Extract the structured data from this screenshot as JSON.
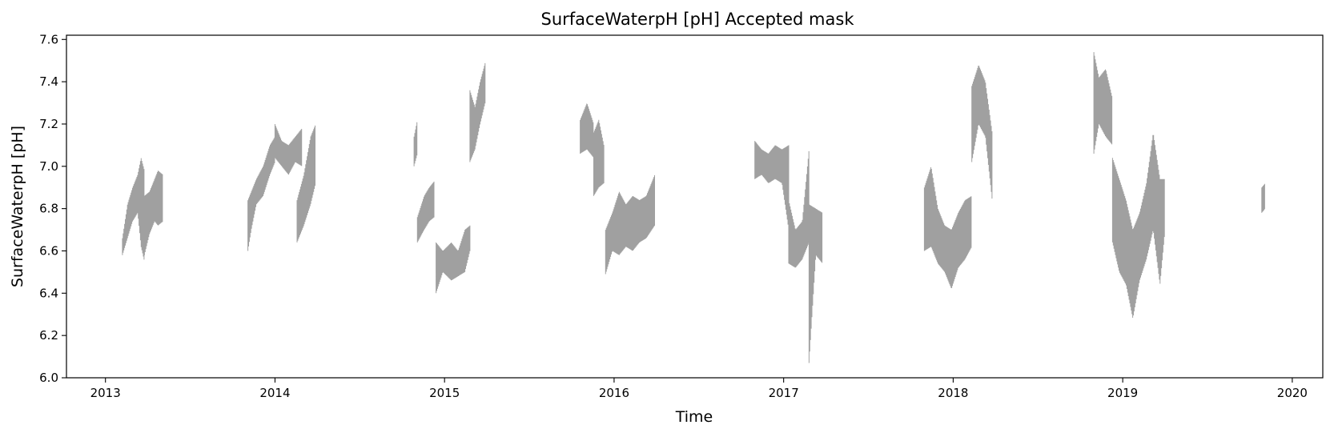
{
  "chart_data": {
    "type": "line",
    "title": "SurfaceWaterpH [pH] Accepted mask",
    "xlabel": "Time",
    "ylabel": "SurfaceWaterpH [pH]",
    "xlim": [
      2012.77,
      2020.18
    ],
    "ylim": [
      6.0,
      7.62
    ],
    "x_ticks": [
      2013,
      2014,
      2015,
      2016,
      2017,
      2018,
      2019,
      2020
    ],
    "x_tick_labels": [
      "2013",
      "2014",
      "2015",
      "2016",
      "2017",
      "2018",
      "2019",
      "2020"
    ],
    "y_ticks": [
      6.0,
      6.2,
      6.4,
      6.6,
      6.8,
      7.0,
      7.2,
      7.4,
      7.6
    ],
    "y_tick_labels": [
      "6.0",
      "6.2",
      "6.4",
      "6.6",
      "6.8",
      "7.0",
      "7.2",
      "7.4",
      "7.6"
    ],
    "grid": false,
    "series_color": "#a0a0a0",
    "series": [
      {
        "segments": [
          {
            "x": [
              2013.1,
              2013.13,
              2013.16,
              2013.19,
              2013.21,
              2013.23
            ],
            "lo": [
              6.58,
              6.66,
              6.74,
              6.78,
              6.62,
              6.55
            ],
            "hi": [
              6.66,
              6.82,
              6.9,
              6.96,
              7.04,
              6.98
            ]
          },
          {
            "x": [
              2013.23,
              2013.26,
              2013.29,
              2013.31,
              2013.34
            ],
            "lo": [
              6.58,
              6.68,
              6.74,
              6.72,
              6.74
            ],
            "hi": [
              6.86,
              6.88,
              6.94,
              6.98,
              6.96
            ]
          },
          {
            "x": [
              2013.84,
              2013.86,
              2013.89,
              2013.93,
              2013.97,
              2014.0
            ],
            "lo": [
              6.6,
              6.7,
              6.82,
              6.86,
              6.96,
              7.02
            ],
            "hi": [
              6.84,
              6.88,
              6.94,
              7.0,
              7.1,
              7.14
            ]
          },
          {
            "x": [
              2014.0,
              2014.04,
              2014.08,
              2014.12,
              2014.16
            ],
            "lo": [
              7.04,
              7.0,
              6.96,
              7.02,
              7.0
            ],
            "hi": [
              7.2,
              7.12,
              7.1,
              7.14,
              7.18
            ]
          },
          {
            "x": [
              2014.13,
              2014.17,
              2014.21,
              2014.24
            ],
            "lo": [
              6.64,
              6.72,
              6.82,
              6.92
            ],
            "hi": [
              6.84,
              6.96,
              7.14,
              7.2
            ]
          },
          {
            "x": [
              2014.82,
              2014.84
            ],
            "lo": [
              7.0,
              7.06
            ],
            "hi": [
              7.14,
              7.22
            ]
          },
          {
            "x": [
              2014.84,
              2014.88,
              2014.91,
              2014.94
            ],
            "lo": [
              6.64,
              6.7,
              6.74,
              6.76
            ],
            "hi": [
              6.76,
              6.86,
              6.9,
              6.93
            ]
          },
          {
            "x": [
              2014.95,
              2014.99,
              2015.04,
              2015.08,
              2015.12,
              2015.15
            ],
            "lo": [
              6.4,
              6.5,
              6.46,
              6.48,
              6.5,
              6.6
            ],
            "hi": [
              6.64,
              6.6,
              6.64,
              6.6,
              6.7,
              6.72
            ]
          },
          {
            "x": [
              2015.15,
              2015.18,
              2015.21,
              2015.24
            ],
            "lo": [
              7.02,
              7.08,
              7.2,
              7.3
            ],
            "hi": [
              7.36,
              7.28,
              7.4,
              7.49
            ]
          },
          {
            "x": [
              2015.8,
              2015.84,
              2015.88
            ],
            "lo": [
              7.06,
              7.08,
              7.04
            ],
            "hi": [
              7.22,
              7.3,
              7.2
            ]
          },
          {
            "x": [
              2015.88,
              2015.91,
              2015.94
            ],
            "lo": [
              6.86,
              6.9,
              6.92
            ],
            "hi": [
              7.16,
              7.22,
              7.1
            ]
          },
          {
            "x": [
              2015.95,
              2015.99,
              2016.03,
              2016.07,
              2016.11,
              2016.15,
              2016.19,
              2016.24
            ],
            "lo": [
              6.49,
              6.6,
              6.58,
              6.62,
              6.6,
              6.64,
              6.66,
              6.72
            ],
            "hi": [
              6.7,
              6.78,
              6.88,
              6.82,
              6.86,
              6.84,
              6.86,
              6.96
            ]
          },
          {
            "x": [
              2016.83,
              2016.87,
              2016.91,
              2016.95,
              2016.99,
              2017.03
            ],
            "lo": [
              6.94,
              6.96,
              6.92,
              6.94,
              6.92,
              6.7
            ],
            "hi": [
              7.12,
              7.08,
              7.06,
              7.1,
              7.08,
              7.1
            ]
          },
          {
            "x": [
              2017.03,
              2017.07,
              2017.11,
              2017.15
            ],
            "lo": [
              6.54,
              6.52,
              6.56,
              6.64
            ],
            "hi": [
              6.84,
              6.7,
              6.74,
              7.08
            ]
          },
          {
            "x": [
              2017.15,
              2017.19,
              2017.23
            ],
            "lo": [
              6.07,
              6.58,
              6.54
            ],
            "hi": [
              6.82,
              6.8,
              6.78
            ]
          },
          {
            "x": [
              2017.83,
              2017.87,
              2017.91,
              2017.95,
              2017.99,
              2018.03,
              2018.07,
              2018.11
            ],
            "lo": [
              6.6,
              6.62,
              6.54,
              6.5,
              6.42,
              6.52,
              6.56,
              6.62
            ],
            "hi": [
              6.9,
              7.0,
              6.8,
              6.72,
              6.7,
              6.78,
              6.84,
              6.86
            ]
          },
          {
            "x": [
              2018.11,
              2018.15,
              2018.19,
              2018.23
            ],
            "lo": [
              7.02,
              7.2,
              7.14,
              6.84
            ],
            "hi": [
              7.38,
              7.48,
              7.4,
              7.16
            ]
          },
          {
            "x": [
              2018.83,
              2018.86,
              2018.9,
              2018.94
            ],
            "lo": [
              7.06,
              7.2,
              7.14,
              7.1
            ],
            "hi": [
              7.54,
              7.42,
              7.46,
              7.32
            ]
          },
          {
            "x": [
              2018.94,
              2018.98,
              2019.02,
              2019.06,
              2019.1,
              2019.14,
              2019.18,
              2019.22,
              2019.25
            ],
            "lo": [
              6.64,
              6.5,
              6.44,
              6.28,
              6.46,
              6.56,
              6.7,
              6.44,
              6.7
            ],
            "hi": [
              7.04,
              6.94,
              6.84,
              6.7,
              6.78,
              6.92,
              7.16,
              6.94,
              6.94
            ]
          },
          {
            "x": [
              2019.82,
              2019.84
            ],
            "lo": [
              6.78,
              6.8
            ],
            "hi": [
              6.9,
              6.92
            ]
          }
        ]
      }
    ]
  }
}
